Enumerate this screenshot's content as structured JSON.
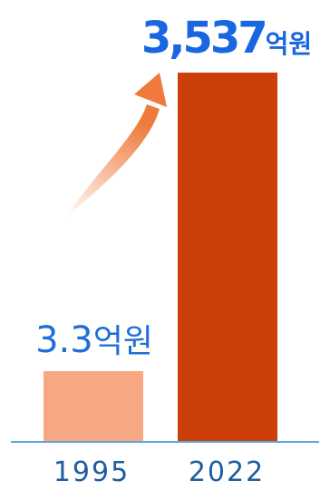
{
  "chart_data": {
    "type": "bar",
    "categories": [
      "1995",
      "2022"
    ],
    "values": [
      3.3,
      3537
    ],
    "value_labels": [
      {
        "number": "3.3",
        "unit": "억원"
      },
      {
        "number": "3,537",
        "unit": "억원"
      }
    ],
    "colors": {
      "bars": [
        "#f7a882",
        "#cc3f0a"
      ],
      "value_label_highlight": "#1a66e0",
      "value_label_plain": "#1d6fd6",
      "axis_line": "#5aa9d8",
      "category_text": "#1f5c9e",
      "arrow": "#f07a3c"
    },
    "annotations": [
      {
        "type": "growth-arrow",
        "from": "1995",
        "to": "2022"
      }
    ],
    "grid": false,
    "legend": "none"
  }
}
